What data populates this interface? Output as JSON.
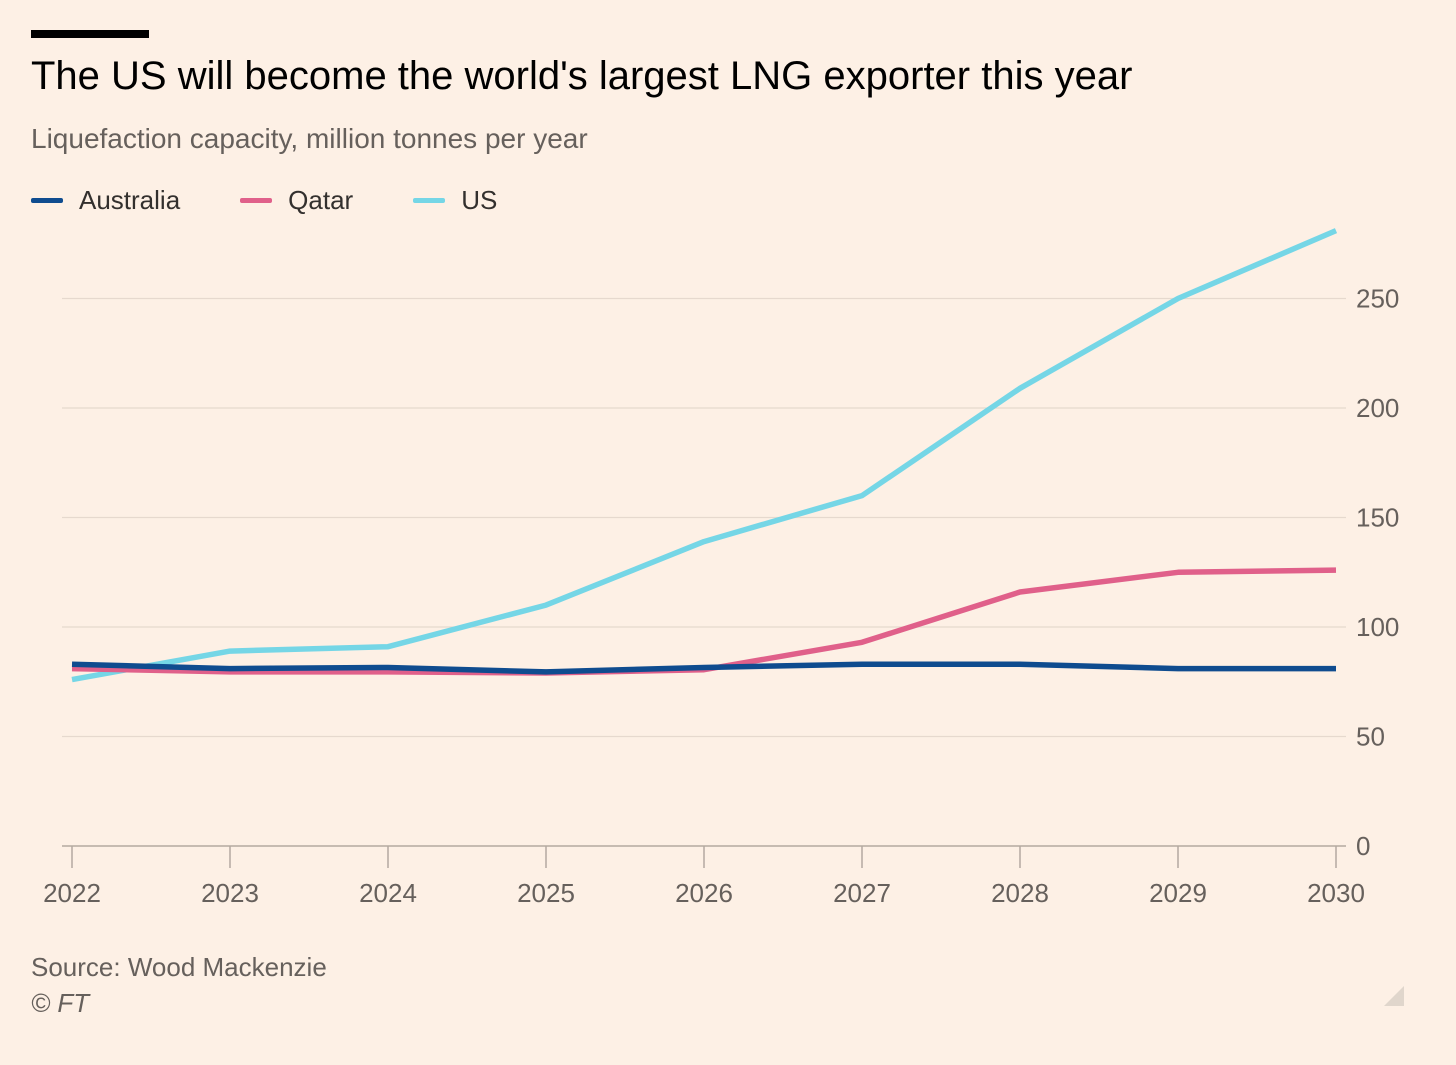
{
  "header": {
    "title": "The US will become the world's largest LNG exporter this year",
    "subtitle": "Liquefaction capacity, million tonnes per year"
  },
  "legend": [
    {
      "label": "Australia",
      "color": "#0f4c8f"
    },
    {
      "label": "Qatar",
      "color": "#e0608a"
    },
    {
      "label": "US",
      "color": "#75d6e6"
    }
  ],
  "footer": {
    "source": "Source: Wood Mackenzie",
    "copyright": "© FT"
  },
  "chart_data": {
    "type": "line",
    "x": [
      2022,
      2023,
      2024,
      2025,
      2026,
      2027,
      2028,
      2029,
      2030
    ],
    "xtick_labels": [
      "2022",
      "2023",
      "2024",
      "2025",
      "2026",
      "2027",
      "2028",
      "2029",
      "2030"
    ],
    "ytick_labels": [
      "0",
      "50",
      "100",
      "150",
      "200",
      "250"
    ],
    "yticks": [
      0,
      50,
      100,
      150,
      200,
      250
    ],
    "ylim": [
      0,
      280
    ],
    "grid": true,
    "y_axis_side": "right",
    "legend_position": "top-left",
    "series": [
      {
        "name": "Australia",
        "color": "#0f4c8f",
        "values": [
          83,
          81,
          81.5,
          79.5,
          81.5,
          83,
          83,
          81,
          81
        ]
      },
      {
        "name": "Qatar",
        "color": "#e0608a",
        "values": [
          81,
          79.5,
          79.5,
          79,
          80.5,
          93,
          116,
          125,
          126
        ]
      },
      {
        "name": "US",
        "color": "#75d6e6",
        "values": [
          76,
          89,
          91,
          110,
          139,
          160,
          209,
          250,
          281
        ]
      }
    ]
  }
}
